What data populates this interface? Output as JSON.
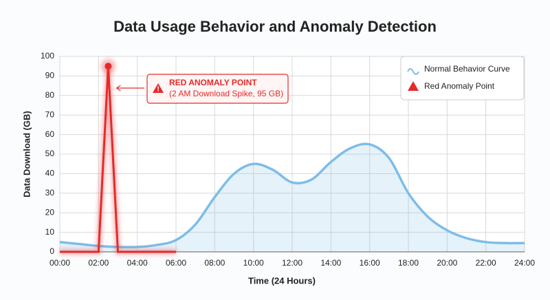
{
  "chart_data": {
    "type": "line",
    "title": "Data Usage Behavior and Anomaly Detection",
    "x_label": "Time (24 Hours)",
    "y_label": "Data Download (GB)",
    "xlim": [
      0,
      24
    ],
    "ylim": [
      0,
      100
    ],
    "xticks": [
      {
        "value": 0,
        "label": "00:00"
      },
      {
        "value": 2,
        "label": "02:00"
      },
      {
        "value": 4,
        "label": "04:00"
      },
      {
        "value": 6,
        "label": "06:00"
      },
      {
        "value": 8,
        "label": "08:00"
      },
      {
        "value": 10,
        "label": "10:00"
      },
      {
        "value": 12,
        "label": "12:00"
      },
      {
        "value": 14,
        "label": "14:00"
      },
      {
        "value": 16,
        "label": "16:00"
      },
      {
        "value": 18,
        "label": "18:00"
      },
      {
        "value": 20,
        "label": "20:00"
      },
      {
        "value": 22,
        "label": "22:00"
      },
      {
        "value": 24,
        "label": "24:00"
      }
    ],
    "yticks": [
      0,
      10,
      20,
      30,
      40,
      50,
      60,
      70,
      80,
      90,
      100
    ],
    "grid": true,
    "legend": "upper right",
    "series": [
      {
        "name": "Normal Behavior Curve",
        "color": "#7dbde8",
        "x": [
          0,
          1,
          2,
          3,
          4,
          5,
          6,
          7,
          8,
          9,
          10,
          11,
          12,
          13,
          14,
          15,
          16,
          17,
          18,
          19,
          20,
          21,
          22,
          23,
          24
        ],
        "values": [
          5,
          4,
          3,
          2.5,
          2.5,
          3.5,
          6,
          14,
          28,
          40,
          45,
          42,
          35.5,
          37,
          46,
          53,
          55,
          48,
          30,
          18,
          11,
          7,
          5,
          4.5,
          4.5
        ]
      },
      {
        "name": "Red Anomaly Point",
        "color": "#e52a2a",
        "x": [
          0,
          2,
          2.5,
          3,
          6
        ],
        "values": [
          0,
          0,
          95,
          0,
          0
        ]
      }
    ],
    "annotation": {
      "title": "RED ANOMALY POINT",
      "text": "(2 AM Download Spike, 95 GB)"
    }
  }
}
